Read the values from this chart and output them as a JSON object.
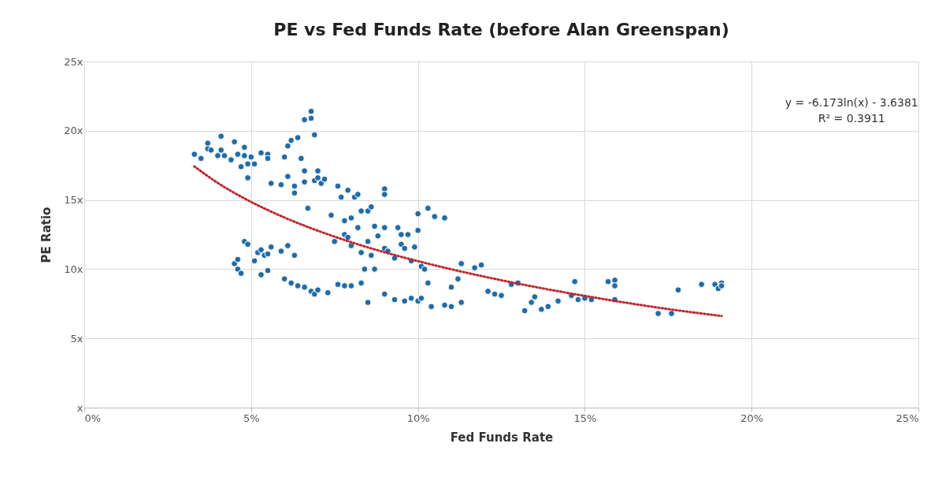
{
  "chart_data": {
    "type": "scatter",
    "title": "PE vs Fed Funds Rate (before Alan Greenspan)",
    "xlabel": "Fed Funds Rate",
    "ylabel": "PE Ratio",
    "annotations": [
      "y = -6.173ln(x) - 3.6381",
      "R² = 0.3911"
    ],
    "xlim": [
      0,
      25
    ],
    "xticks": [
      {
        "value": 0,
        "label": "0%"
      },
      {
        "value": 5,
        "label": "5%"
      },
      {
        "value": 10,
        "label": "10%"
      },
      {
        "value": 15,
        "label": "15%"
      },
      {
        "value": 20,
        "label": "20%"
      },
      {
        "value": 25,
        "label": "25%"
      }
    ],
    "ylim": [
      0,
      25
    ],
    "yticks": [
      {
        "value": 0,
        "label": "x"
      },
      {
        "value": 5,
        "label": "5x"
      },
      {
        "value": 10,
        "label": "10x"
      },
      {
        "value": 15,
        "label": "15x"
      },
      {
        "value": 20,
        "label": "20x"
      },
      {
        "value": 25,
        "label": "25x"
      }
    ],
    "grid": true,
    "marker": "circle",
    "series": [
      {
        "color": "#1f6ca9",
        "x": [
          3.3,
          3.5,
          3.7,
          3.7,
          3.8,
          4.1,
          4.1,
          4.2,
          4.0,
          4.4,
          4.5,
          4.6,
          4.7,
          4.8,
          4.8,
          4.9,
          4.9,
          5.0,
          5.1,
          5.3,
          5.5,
          5.5,
          5.6,
          5.9,
          6.0,
          6.1,
          6.2,
          6.1,
          6.3,
          6.3,
          6.4,
          6.5,
          6.6,
          6.6,
          6.7,
          6.6,
          6.8,
          6.8,
          6.9,
          6.9,
          7.0,
          7.0,
          7.1,
          7.2,
          7.4,
          7.6,
          7.7,
          7.9,
          8.0,
          8.1,
          8.3,
          8.2,
          8.5,
          8.6,
          9.0,
          9.0,
          10.0,
          10.3,
          10.5,
          10.8,
          7.5,
          7.8,
          7.9,
          8.0,
          7.8,
          8.2,
          8.4,
          8.3,
          8.5,
          8.6,
          8.7,
          8.8,
          9.0,
          9.0,
          9.1,
          9.3,
          9.4,
          9.5,
          9.5,
          9.6,
          9.7,
          9.8,
          9.9,
          10.0,
          10.1,
          10.2,
          10.3,
          11.0,
          11.3,
          11.2,
          11.7,
          11.9,
          12.3,
          4.5,
          4.6,
          4.6,
          4.7,
          4.8,
          4.9,
          5.1,
          5.2,
          5.3,
          5.4,
          5.5,
          5.3,
          5.5,
          5.6,
          5.9,
          6.0,
          6.1,
          6.3,
          6.2,
          6.4,
          6.6,
          6.8,
          6.9,
          7.0,
          7.3,
          7.6,
          7.8,
          8.0,
          8.3,
          8.5,
          8.7,
          9.0,
          9.3,
          9.6,
          9.8,
          10.0,
          10.1,
          10.4,
          10.8,
          11.0,
          11.3,
          12.1,
          12.5,
          12.8,
          13.0,
          13.2,
          13.4,
          13.5,
          13.7,
          13.9,
          14.2,
          14.6,
          14.7,
          14.8,
          15.0,
          15.2,
          15.7,
          15.9,
          15.9,
          15.9,
          17.2,
          17.6,
          17.8,
          18.5,
          18.9,
          19.1,
          19.0,
          19.1
        ],
        "values": [
          18.3,
          18.0,
          18.7,
          19.1,
          18.6,
          19.6,
          18.6,
          18.2,
          18.2,
          17.9,
          19.2,
          18.3,
          17.4,
          18.2,
          18.8,
          17.6,
          16.6,
          18.1,
          17.6,
          18.4,
          18.3,
          18.0,
          16.2,
          16.1,
          18.1,
          16.7,
          19.3,
          18.9,
          16.0,
          15.5,
          19.5,
          18.0,
          17.1,
          16.3,
          14.4,
          20.8,
          20.9,
          21.4,
          19.7,
          16.4,
          17.1,
          16.6,
          16.2,
          16.5,
          13.9,
          16.0,
          15.2,
          15.7,
          13.7,
          15.2,
          14.2,
          15.4,
          14.2,
          14.5,
          15.8,
          15.4,
          14.0,
          14.4,
          13.8,
          13.7,
          12.0,
          12.5,
          12.3,
          11.7,
          13.5,
          13.0,
          10.0,
          11.2,
          12.0,
          11.0,
          13.1,
          12.4,
          11.5,
          13.0,
          11.3,
          10.8,
          13.0,
          12.5,
          11.8,
          11.5,
          12.5,
          10.6,
          11.6,
          12.8,
          10.2,
          10.0,
          9.0,
          8.7,
          10.4,
          9.3,
          10.1,
          10.3,
          8.2,
          10.4,
          10.7,
          10.0,
          9.7,
          12.0,
          11.8,
          10.6,
          11.2,
          11.4,
          11.0,
          11.1,
          9.6,
          9.9,
          11.6,
          11.3,
          9.3,
          11.7,
          11.0,
          9.0,
          8.8,
          8.7,
          8.4,
          8.2,
          8.5,
          8.3,
          8.9,
          8.8,
          8.8,
          9.0,
          7.6,
          10.0,
          8.2,
          7.8,
          7.7,
          7.9,
          7.7,
          7.9,
          7.3,
          7.4,
          7.3,
          7.6,
          8.4,
          8.1,
          8.9,
          9.0,
          7.0,
          7.6,
          8.0,
          7.1,
          7.3,
          7.7,
          8.1,
          9.1,
          7.8,
          7.9,
          7.8,
          9.1,
          9.2,
          8.8,
          7.8,
          6.8,
          6.8,
          8.5,
          8.9,
          8.9,
          9.0,
          8.6,
          8.8
        ]
      },
      {
        "type": "line",
        "color": "#c0272d",
        "line_style": "dotted",
        "marker": "none",
        "x": [
          3.3,
          4,
          5,
          6,
          7.5,
          9,
          10,
          12.5,
          15,
          17.5,
          19.1
        ],
        "values": [
          17.42,
          16.23,
          14.86,
          13.73,
          12.35,
          11.22,
          10.58,
          9.2,
          8.07,
          7.12,
          6.62
        ]
      }
    ]
  }
}
